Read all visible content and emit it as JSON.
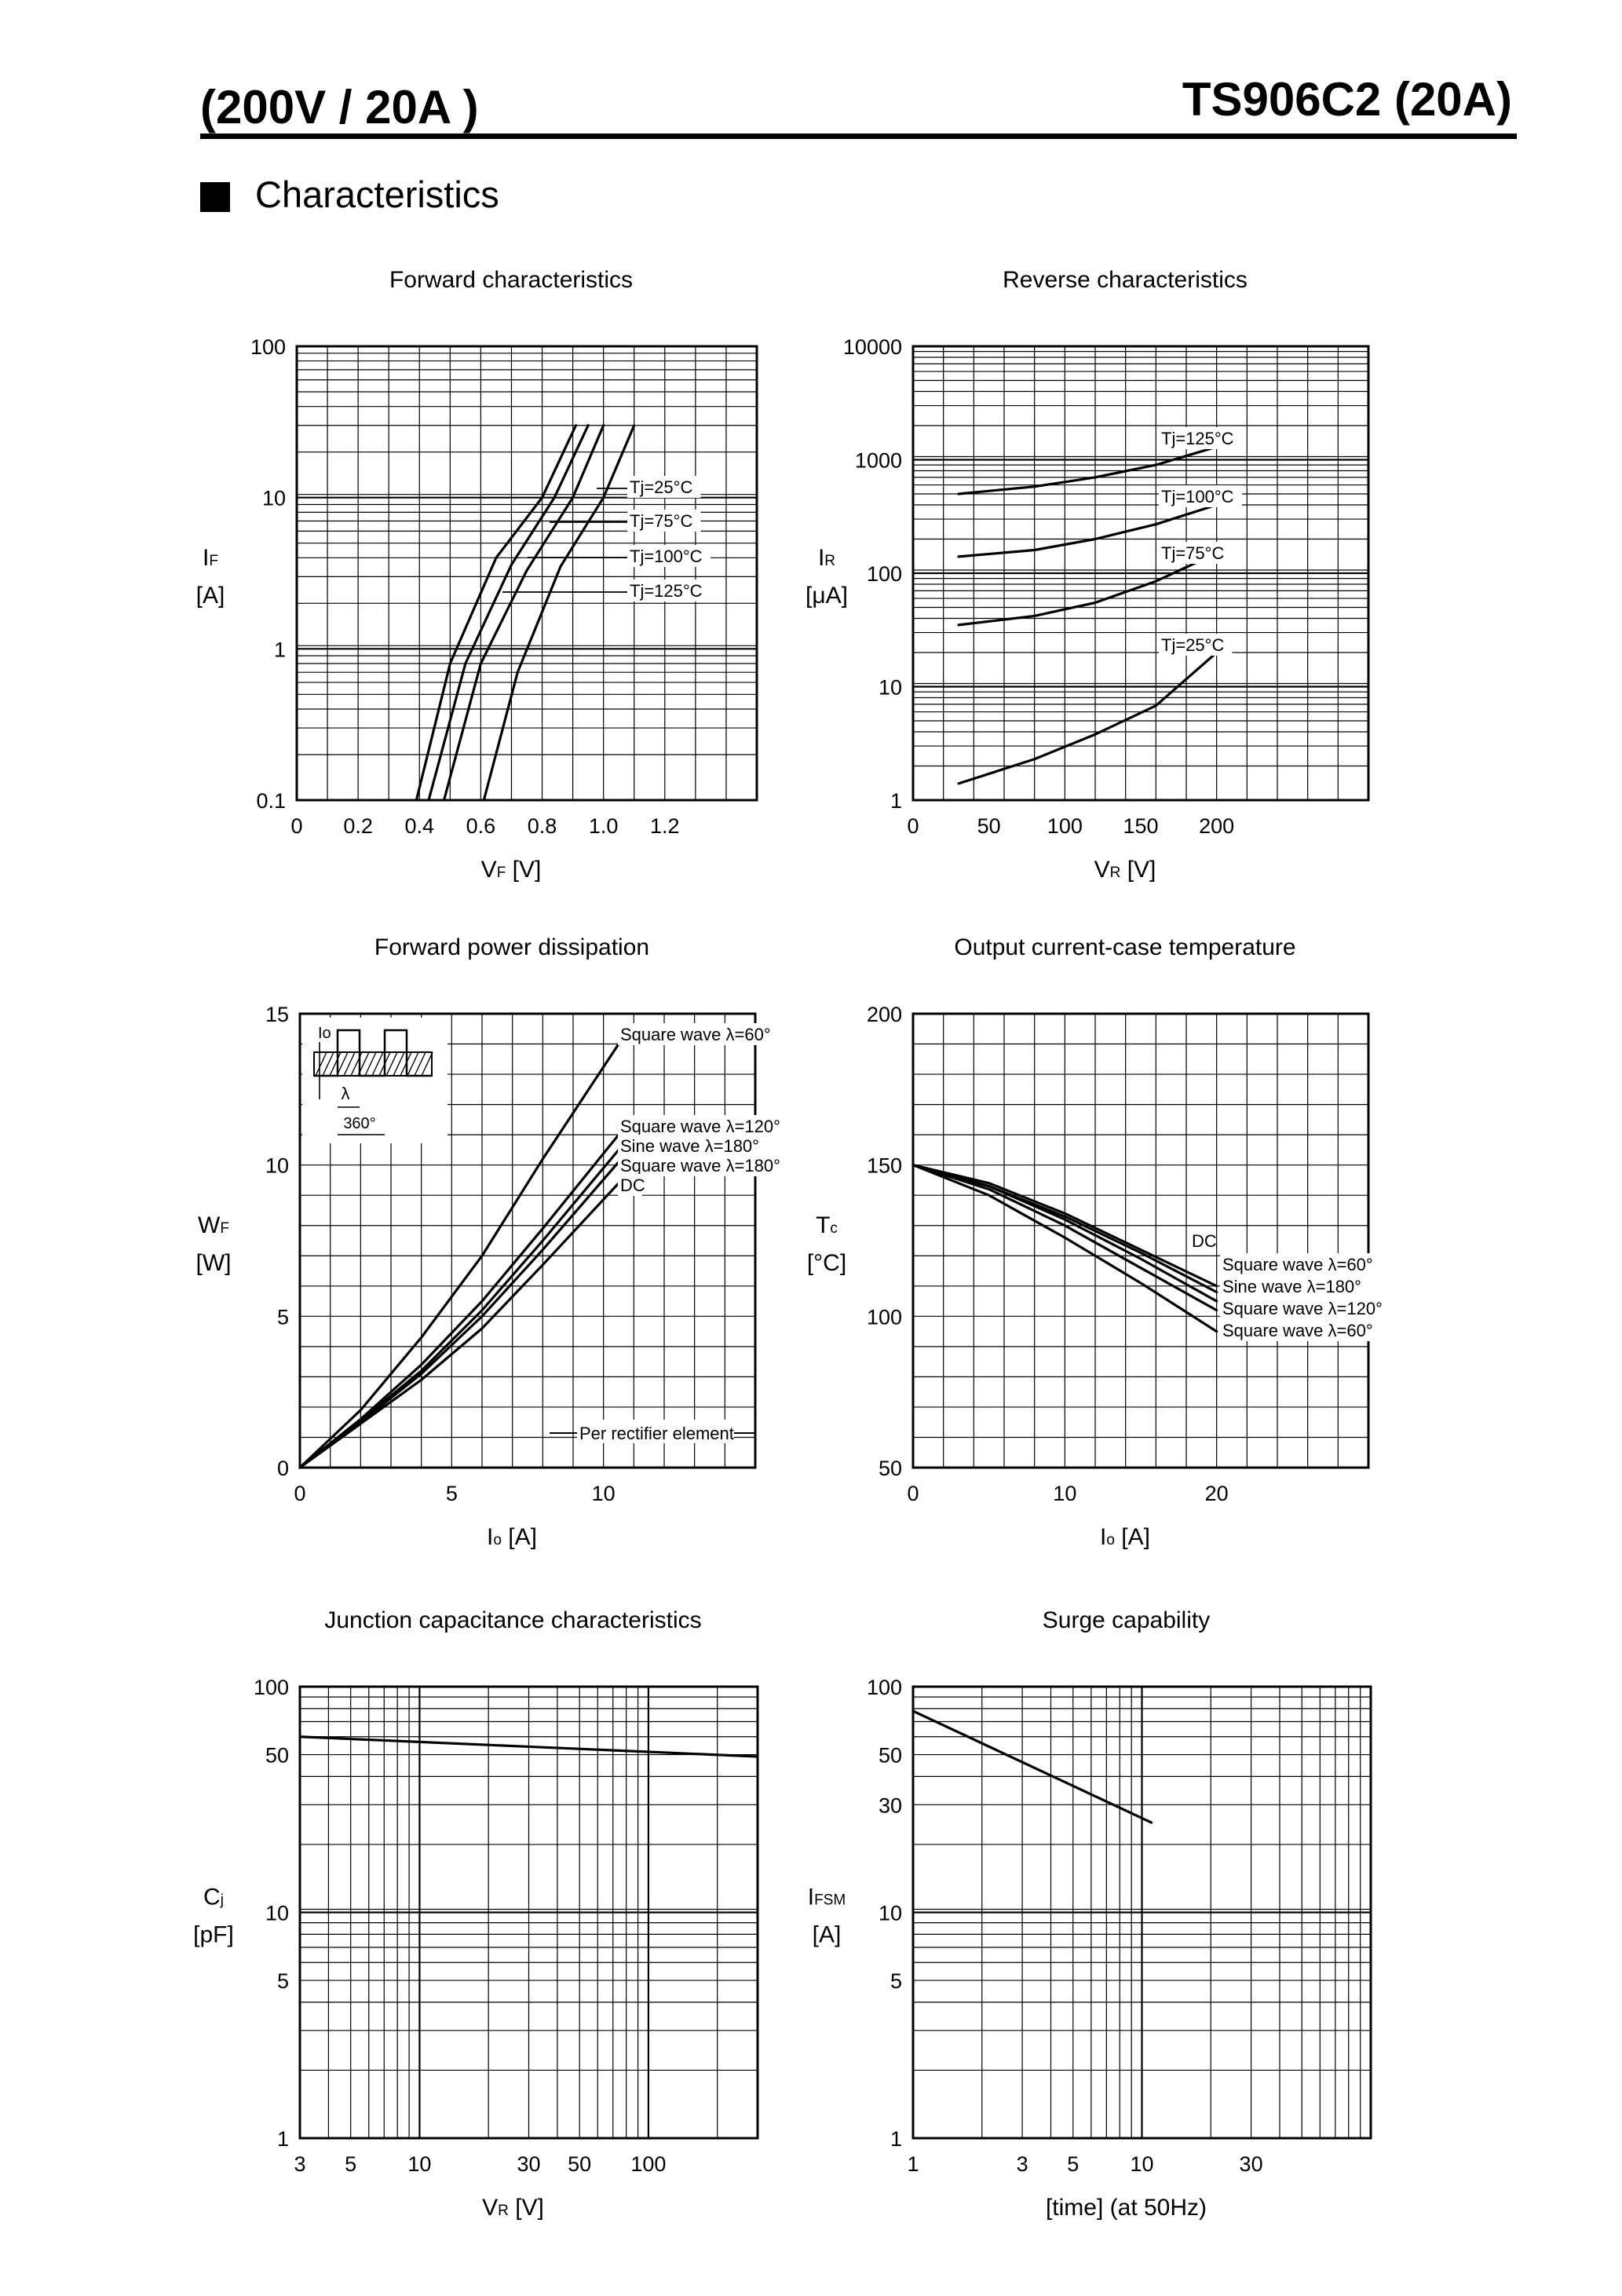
{
  "header": {
    "left": "(200V / 20A )",
    "right": "TS906C2 (20A)"
  },
  "section_title": "Characteristics",
  "chart_data": [
    {
      "id": "forward",
      "type": "line",
      "title": "Forward characteristics",
      "ylabel": [
        "I",
        "F",
        "[A]"
      ],
      "xlabel": [
        "V",
        "F",
        "  [V]"
      ],
      "xlim": [
        0,
        1.5
      ],
      "ylim": [
        0.1,
        100
      ],
      "yscale": "log",
      "xticks": [
        0,
        0.2,
        0.4,
        0.6,
        0.8,
        1.0,
        1.2
      ],
      "xtick_labels": [
        "0",
        "0.2",
        "0.4",
        "0.6",
        "0.8",
        "1.0",
        "1.2"
      ],
      "yticks": [
        0.1,
        1,
        10,
        100
      ],
      "ytick_labels": [
        "0.1",
        "1",
        "10",
        "100"
      ],
      "grid": true,
      "series": [
        {
          "name": "Tj=25°C",
          "x": [
            0.61,
            0.72,
            0.86,
            1.0,
            1.1
          ],
          "y": [
            0.1,
            0.7,
            3.5,
            10,
            30
          ]
        },
        {
          "name": "Tj=75°C",
          "x": [
            0.48,
            0.6,
            0.75,
            0.9,
            1.0
          ],
          "y": [
            0.1,
            0.8,
            3.3,
            10,
            30
          ]
        },
        {
          "name": "Tj=100°C",
          "x": [
            0.43,
            0.55,
            0.7,
            0.84,
            0.95
          ],
          "y": [
            0.1,
            0.8,
            3.6,
            10,
            30
          ]
        },
        {
          "name": "Tj=125°C",
          "x": [
            0.39,
            0.5,
            0.65,
            0.8,
            0.91
          ],
          "y": [
            0.1,
            0.8,
            4.0,
            10,
            30
          ]
        }
      ]
    },
    {
      "id": "reverse",
      "type": "line",
      "title": "Reverse characteristics",
      "ylabel": [
        "I",
        "R",
        "[μA]"
      ],
      "xlabel": [
        "V",
        "R",
        " [V]"
      ],
      "xlim": [
        0,
        300
      ],
      "ylim": [
        1,
        10000
      ],
      "yscale": "log",
      "xticks": [
        0,
        50,
        100,
        150,
        200
      ],
      "xtick_labels": [
        "0",
        "50",
        "100",
        "150",
        "200"
      ],
      "yticks": [
        1,
        10,
        100,
        1000,
        10000
      ],
      "ytick_labels": [
        "1",
        "10",
        "100",
        "1000",
        "10000"
      ],
      "grid": true,
      "series": [
        {
          "name": "Tj=125°C",
          "x": [
            30,
            80,
            120,
            160,
            200
          ],
          "y": [
            500,
            580,
            700,
            900,
            1300
          ]
        },
        {
          "name": "Tj=100°C",
          "x": [
            30,
            80,
            120,
            160,
            200
          ],
          "y": [
            140,
            160,
            200,
            270,
            400
          ]
        },
        {
          "name": "Tj=75°C",
          "x": [
            30,
            80,
            120,
            160,
            200
          ],
          "y": [
            35,
            42,
            55,
            85,
            150
          ]
        },
        {
          "name": "Tj=25°C",
          "x": [
            30,
            80,
            120,
            160,
            200
          ],
          "y": [
            1.4,
            2.3,
            3.8,
            6.8,
            20
          ]
        }
      ]
    },
    {
      "id": "fpd",
      "type": "line",
      "title": "Forward power dissipation",
      "ylabel": [
        "W",
        "F",
        "[W]"
      ],
      "xlabel": [
        "I",
        "o",
        "  [A]"
      ],
      "xlim": [
        0,
        15
      ],
      "ylim": [
        0,
        15
      ],
      "xticks": [
        0,
        5,
        10
      ],
      "xtick_labels": [
        "0",
        "5",
        "10"
      ],
      "yticks": [
        0,
        5,
        10,
        15
      ],
      "ytick_labels": [
        "0",
        "5",
        "10",
        "15"
      ],
      "grid": true,
      "series": [
        {
          "name": "Square wave λ=60°",
          "x": [
            0,
            2,
            4,
            6,
            8,
            10.5
          ],
          "y": [
            0,
            1.9,
            4.3,
            7.0,
            10.2,
            14.0
          ]
        },
        {
          "name": "Square wave λ=120°",
          "x": [
            0,
            2,
            4,
            6,
            8,
            10.5
          ],
          "y": [
            0,
            1.6,
            3.4,
            5.5,
            7.9,
            11.0
          ]
        },
        {
          "name": "Sine wave λ=180°",
          "x": [
            0,
            2,
            4,
            6,
            8,
            10.5
          ],
          "y": [
            0,
            1.55,
            3.2,
            5.2,
            7.5,
            10.5
          ]
        },
        {
          "name": "Square wave λ=180°",
          "x": [
            0,
            2,
            4,
            6,
            8,
            10.5
          ],
          "y": [
            0,
            1.5,
            3.1,
            5.0,
            7.2,
            10.1
          ]
        },
        {
          "name": "DC",
          "x": [
            0,
            2,
            4,
            6,
            8,
            10.5
          ],
          "y": [
            0,
            1.45,
            2.9,
            4.6,
            6.7,
            9.4
          ]
        }
      ],
      "annotations": [
        "Per rectifier element",
        "Io",
        "λ",
        "360°"
      ]
    },
    {
      "id": "ictc",
      "type": "line",
      "title": "Output current-case temperature",
      "ylabel": [
        "T",
        "c",
        "[°C]"
      ],
      "xlabel": [
        "I",
        "o",
        "  [A]"
      ],
      "xlim": [
        0,
        30
      ],
      "ylim": [
        50,
        200
      ],
      "xticks": [
        0,
        10,
        20
      ],
      "xtick_labels": [
        "0",
        "10",
        "20"
      ],
      "yticks": [
        50,
        100,
        150,
        200
      ],
      "ytick_labels": [
        "50",
        "100",
        "150",
        "200"
      ],
      "grid": true,
      "series": [
        {
          "name": "DC",
          "x": [
            0,
            5,
            10,
            15,
            20
          ],
          "y": [
            150,
            144,
            134,
            122,
            110
          ]
        },
        {
          "name": "Square wave λ=60°",
          "x": [
            0,
            5,
            10,
            15,
            20
          ],
          "y": [
            150,
            143,
            133,
            121,
            108
          ]
        },
        {
          "name": "Sine wave λ=180°",
          "x": [
            0,
            5,
            10,
            15,
            20
          ],
          "y": [
            150,
            143,
            132,
            119,
            105
          ]
        },
        {
          "name": "Square wave λ=120°",
          "x": [
            0,
            5,
            10,
            15,
            20
          ],
          "y": [
            150,
            142,
            130,
            116,
            102
          ]
        },
        {
          "name": "Square wave λ=60°",
          "x": [
            0,
            5,
            10,
            15,
            20
          ],
          "y": [
            150,
            140,
            126,
            111,
            95
          ]
        }
      ]
    },
    {
      "id": "jcap",
      "type": "line",
      "title": "Junction capacitance characteristics",
      "ylabel": [
        "C",
        "j",
        "[pF]"
      ],
      "xlabel": [
        "V",
        "R",
        "  [V]"
      ],
      "xlim": [
        3,
        300
      ],
      "ylim": [
        1,
        100
      ],
      "xscale": "log",
      "yscale": "log",
      "xticks": [
        3,
        5,
        10,
        30,
        50,
        100
      ],
      "xtick_labels": [
        "3",
        "5",
        "10",
        "30",
        "50",
        "100"
      ],
      "yticks": [
        1,
        5,
        10,
        50,
        100
      ],
      "ytick_labels": [
        "1",
        "5",
        "10",
        "50",
        "100"
      ],
      "grid": true,
      "series": [
        {
          "name": "",
          "x": [
            3,
            300
          ],
          "y": [
            60,
            49
          ]
        }
      ]
    },
    {
      "id": "surge",
      "type": "line",
      "title": "Surge capability",
      "ylabel": [
        "I",
        "FSM",
        "[A]"
      ],
      "xlabel": [
        "[time] (at 50Hz)",
        "",
        ""
      ],
      "xlim": [
        1,
        100
      ],
      "ylim": [
        1,
        100
      ],
      "xscale": "log",
      "yscale": "log",
      "xticks": [
        1,
        3,
        5,
        10,
        30
      ],
      "xtick_labels": [
        "1",
        "3",
        "5",
        "10",
        "30"
      ],
      "yticks": [
        1,
        5,
        10,
        30,
        50,
        100
      ],
      "ytick_labels": [
        "1",
        "5",
        "10",
        "30",
        "50",
        "100"
      ],
      "grid": true,
      "series": [
        {
          "name": "",
          "x": [
            1,
            11
          ],
          "y": [
            78,
            25
          ]
        }
      ]
    }
  ]
}
